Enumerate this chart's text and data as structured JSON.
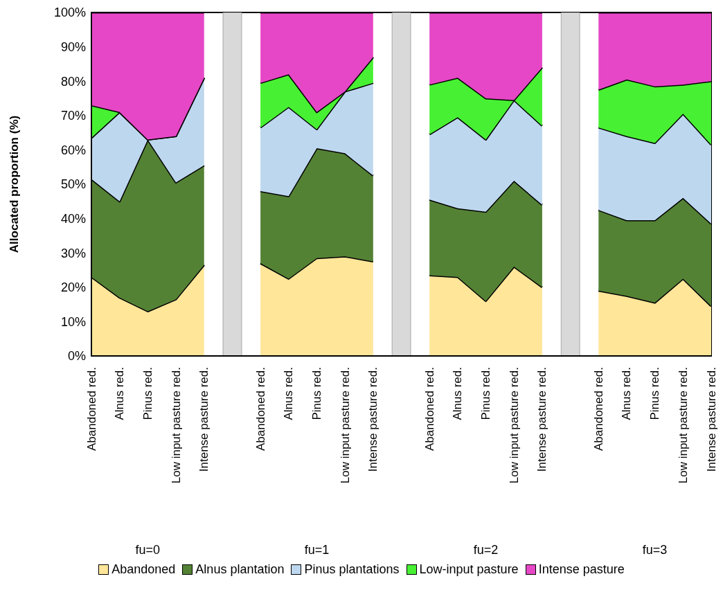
{
  "chart_data": {
    "type": "area",
    "stacked": true,
    "ylabel": "Allocated proportion (%)",
    "categories": [
      "Abandoned red.",
      "Alnus red.",
      "Pinus red.",
      "Low input pasture red.",
      "Intense pasture red.",
      null,
      "Abandoned red.",
      "Alnus red.",
      "Pinus red.",
      "Low input pasture red.",
      "Intense pasture red.",
      null,
      "Abandoned red.",
      "Alnus red.",
      "Pinus red.",
      "Low input pasture red.",
      "Intense pasture red.",
      null,
      "Abandoned red.",
      "Alnus red.",
      "Pinus red.",
      "Low input pasture red.",
      "Intense pasture red."
    ],
    "series": [
      {
        "name": "Abandoned",
        "color": "#ffe699",
        "values": [
          23,
          17,
          13,
          16.5,
          26.5,
          null,
          27,
          22.5,
          28.5,
          29,
          27.5,
          null,
          23.5,
          23,
          16,
          26,
          20,
          null,
          19,
          17.5,
          15.5,
          22.5,
          14.5
        ]
      },
      {
        "name": "Alnus plantation",
        "color": "#548235",
        "values": [
          28.5,
          28,
          50,
          34,
          29,
          null,
          21,
          24,
          32,
          30,
          25,
          null,
          22,
          20,
          26,
          25,
          24,
          null,
          23.5,
          22,
          24,
          23.5,
          24
        ]
      },
      {
        "name": "Pinus plantations",
        "color": "#bdd7ee",
        "values": [
          12,
          26,
          0,
          13.5,
          25.5,
          null,
          18.5,
          26,
          5.5,
          18,
          27,
          null,
          19,
          26.5,
          21,
          23.5,
          23,
          null,
          24,
          24.5,
          22.5,
          24.5,
          23
        ]
      },
      {
        "name": "Low-input pasture",
        "color": "#47f032",
        "values": [
          9.5,
          0,
          0,
          0,
          0,
          null,
          13,
          9.5,
          5,
          0,
          7.5,
          null,
          14.5,
          11.5,
          12,
          0,
          17,
          null,
          11,
          16.5,
          16.5,
          8.5,
          18.5
        ]
      },
      {
        "name": "Intense pasture",
        "color": "#e647c6",
        "values": [
          27,
          29,
          37,
          36,
          19,
          null,
          20.5,
          18,
          29,
          23,
          13,
          null,
          21,
          19,
          25,
          25.5,
          16,
          null,
          22.5,
          19.5,
          21.5,
          21,
          20
        ]
      },
      {
        "type": "bar",
        "color": "#d9d9d9",
        "values": [
          null,
          null,
          null,
          null,
          null,
          100,
          null,
          null,
          null,
          null,
          null,
          100,
          null,
          null,
          null,
          null,
          null,
          100,
          null,
          null,
          null,
          null,
          null
        ]
      }
    ],
    "ylim": [
      0,
      100
    ],
    "yticks": [
      {
        "value": 0,
        "label": "0%"
      },
      {
        "value": 10,
        "label": "10%"
      },
      {
        "value": 20,
        "label": "20%"
      },
      {
        "value": 30,
        "label": "30%"
      },
      {
        "value": 40,
        "label": "40%"
      },
      {
        "value": 50,
        "label": "50%"
      },
      {
        "value": 60,
        "label": "60%"
      },
      {
        "value": 70,
        "label": "70%"
      },
      {
        "value": 80,
        "label": "80%"
      },
      {
        "value": 90,
        "label": "90%"
      },
      {
        "value": 100,
        "label": "100%"
      }
    ],
    "annotations": [
      "fu=0",
      "fu=1",
      "fu=2",
      "fu=3"
    ],
    "grid": false,
    "legend": "bottom"
  }
}
